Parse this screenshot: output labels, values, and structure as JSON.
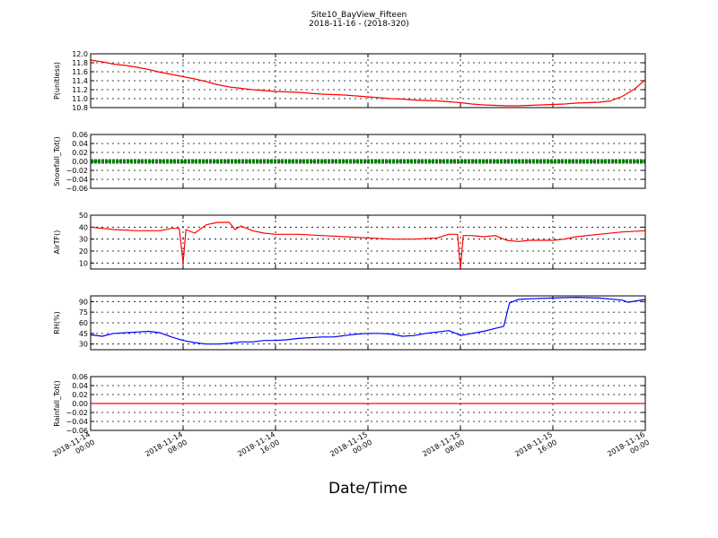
{
  "chart_data": {
    "type": "line",
    "title": "Site10_BayView_Fifteen",
    "subtitle": "2018-11-16 - (2018-320)",
    "xlabel": "Date/Time",
    "x_range": [
      "2018-11-14 00:00",
      "2018-11-16 00:00"
    ],
    "x_ticks": [
      {
        "line1": "2018-11-14",
        "line2": "00:00"
      },
      {
        "line1": "2018-11-14",
        "line2": "08:00"
      },
      {
        "line1": "2018-11-14",
        "line2": "16:00"
      },
      {
        "line1": "2018-11-15",
        "line2": "00:00"
      },
      {
        "line1": "2018-11-15",
        "line2": "08:00"
      },
      {
        "line1": "2018-11-15",
        "line2": "16:00"
      },
      {
        "line1": "2018-11-16",
        "line2": "00:00"
      }
    ],
    "grid": true,
    "panels": [
      {
        "ylabel": "P(unitless)",
        "ylim": [
          10.8,
          12.0
        ],
        "yticks": [
          10.8,
          11.0,
          11.2,
          11.4,
          11.6,
          11.8,
          12.0
        ],
        "ytick_labels": [
          "10.8",
          "11.0",
          "11.2",
          "11.4",
          "11.6",
          "11.8",
          "12.0"
        ],
        "color": "#ff0000",
        "style": "line",
        "points": [
          [
            "2018-11-14 00:00",
            11.86
          ],
          [
            "2018-11-14 01:00",
            11.82
          ],
          [
            "2018-11-14 02:00",
            11.77
          ],
          [
            "2018-11-14 03:00",
            11.74
          ],
          [
            "2018-11-14 04:00",
            11.7
          ],
          [
            "2018-11-14 05:00",
            11.65
          ],
          [
            "2018-11-14 06:00",
            11.59
          ],
          [
            "2018-11-14 07:00",
            11.54
          ],
          [
            "2018-11-14 08:00",
            11.49
          ],
          [
            "2018-11-14 09:00",
            11.44
          ],
          [
            "2018-11-14 10:00",
            11.38
          ],
          [
            "2018-11-14 11:00",
            11.31
          ],
          [
            "2018-11-14 12:00",
            11.26
          ],
          [
            "2018-11-14 13:00",
            11.23
          ],
          [
            "2018-11-14 14:00",
            11.2
          ],
          [
            "2018-11-14 15:00",
            11.18
          ],
          [
            "2018-11-14 16:00",
            11.16
          ],
          [
            "2018-11-14 17:00",
            11.15
          ],
          [
            "2018-11-14 18:00",
            11.14
          ],
          [
            "2018-11-14 19:00",
            11.12
          ],
          [
            "2018-11-14 20:00",
            11.1
          ],
          [
            "2018-11-14 21:00",
            11.09
          ],
          [
            "2018-11-14 22:00",
            11.08
          ],
          [
            "2018-11-14 23:00",
            11.06
          ],
          [
            "2018-11-15 00:00",
            11.04
          ],
          [
            "2018-11-15 01:00",
            11.02
          ],
          [
            "2018-11-15 02:00",
            11.0
          ],
          [
            "2018-11-15 03:00",
            10.99
          ],
          [
            "2018-11-15 04:00",
            10.97
          ],
          [
            "2018-11-15 05:00",
            10.96
          ],
          [
            "2018-11-15 06:00",
            10.95
          ],
          [
            "2018-11-15 07:00",
            10.93
          ],
          [
            "2018-11-15 08:00",
            10.91
          ],
          [
            "2018-11-15 09:00",
            10.88
          ],
          [
            "2018-11-15 10:00",
            10.86
          ],
          [
            "2018-11-15 11:00",
            10.85
          ],
          [
            "2018-11-15 12:00",
            10.84
          ],
          [
            "2018-11-15 13:00",
            10.84
          ],
          [
            "2018-11-15 14:00",
            10.85
          ],
          [
            "2018-11-15 15:00",
            10.86
          ],
          [
            "2018-11-15 16:00",
            10.87
          ],
          [
            "2018-11-15 17:00",
            10.88
          ],
          [
            "2018-11-15 18:00",
            10.9
          ],
          [
            "2018-11-15 19:00",
            10.91
          ],
          [
            "2018-11-15 20:00",
            10.92
          ],
          [
            "2018-11-15 21:00",
            10.95
          ],
          [
            "2018-11-15 22:00",
            11.05
          ],
          [
            "2018-11-15 23:00",
            11.2
          ],
          [
            "2018-11-16 00:00",
            11.42
          ]
        ]
      },
      {
        "ylabel": "Snowfall_Tot()",
        "ylim": [
          -0.06,
          0.06
        ],
        "yticks": [
          -0.06,
          -0.04,
          -0.02,
          0.0,
          0.02,
          0.04,
          0.06
        ],
        "ytick_labels": [
          "−0.06",
          "−0.04",
          "−0.02",
          "0.00",
          "0.02",
          "0.04",
          "0.06"
        ],
        "color": "#007f00",
        "style": "markers",
        "points": [
          [
            "2018-11-14 00:00",
            0.0
          ],
          [
            "2018-11-16 00:00",
            0.0
          ]
        ]
      },
      {
        "ylabel": "AirTF()",
        "ylim": [
          5,
          50
        ],
        "yticks": [
          10,
          20,
          30,
          40,
          50
        ],
        "ytick_labels": [
          "10",
          "20",
          "30",
          "40",
          "50"
        ],
        "color": "#ff0000",
        "style": "line",
        "points": [
          [
            "2018-11-14 00:00",
            40
          ],
          [
            "2018-11-14 02:00",
            38
          ],
          [
            "2018-11-14 04:00",
            37
          ],
          [
            "2018-11-14 06:00",
            37
          ],
          [
            "2018-11-14 07:00",
            39
          ],
          [
            "2018-11-14 07:40",
            39
          ],
          [
            "2018-11-14 08:00",
            10
          ],
          [
            "2018-11-14 08:15",
            38
          ],
          [
            "2018-11-14 09:00",
            35
          ],
          [
            "2018-11-14 10:00",
            42
          ],
          [
            "2018-11-14 11:00",
            44
          ],
          [
            "2018-11-14 12:00",
            44
          ],
          [
            "2018-11-14 12:30",
            38
          ],
          [
            "2018-11-14 13:00",
            41
          ],
          [
            "2018-11-14 14:00",
            37
          ],
          [
            "2018-11-14 15:00",
            35
          ],
          [
            "2018-11-14 16:00",
            34
          ],
          [
            "2018-11-14 17:00",
            34
          ],
          [
            "2018-11-14 18:00",
            34
          ],
          [
            "2018-11-14 20:00",
            33
          ],
          [
            "2018-11-14 22:00",
            32
          ],
          [
            "2018-11-15 00:00",
            31
          ],
          [
            "2018-11-15 02:00",
            30
          ],
          [
            "2018-11-15 04:00",
            30
          ],
          [
            "2018-11-15 06:00",
            31
          ],
          [
            "2018-11-15 07:00",
            34
          ],
          [
            "2018-11-15 07:45",
            34
          ],
          [
            "2018-11-15 08:00",
            5
          ],
          [
            "2018-11-15 08:15",
            33
          ],
          [
            "2018-11-15 09:00",
            33
          ],
          [
            "2018-11-15 10:00",
            32
          ],
          [
            "2018-11-15 11:00",
            33
          ],
          [
            "2018-11-15 12:00",
            29
          ],
          [
            "2018-11-15 13:00",
            28
          ],
          [
            "2018-11-15 14:00",
            29
          ],
          [
            "2018-11-15 16:00",
            29
          ],
          [
            "2018-11-15 17:00",
            30
          ],
          [
            "2018-11-15 18:00",
            32
          ],
          [
            "2018-11-15 20:00",
            34
          ],
          [
            "2018-11-15 22:00",
            36
          ],
          [
            "2018-11-16 00:00",
            37
          ]
        ]
      },
      {
        "ylabel": "RH(%)",
        "ylim": [
          22,
          98
        ],
        "yticks": [
          30,
          45,
          60,
          75,
          90
        ],
        "ytick_labels": [
          "30",
          "45",
          "60",
          "75",
          "90"
        ],
        "color": "#0000ff",
        "style": "line",
        "points": [
          [
            "2018-11-14 00:00",
            43
          ],
          [
            "2018-11-14 01:00",
            41
          ],
          [
            "2018-11-14 02:00",
            45
          ],
          [
            "2018-11-14 03:00",
            46
          ],
          [
            "2018-11-14 04:00",
            47
          ],
          [
            "2018-11-14 05:00",
            48
          ],
          [
            "2018-11-14 06:00",
            46
          ],
          [
            "2018-11-14 07:00",
            40
          ],
          [
            "2018-11-14 08:00",
            35
          ],
          [
            "2018-11-14 09:00",
            32
          ],
          [
            "2018-11-14 10:00",
            30
          ],
          [
            "2018-11-14 11:00",
            30
          ],
          [
            "2018-11-14 12:00",
            31
          ],
          [
            "2018-11-14 13:00",
            33
          ],
          [
            "2018-11-14 14:00",
            33
          ],
          [
            "2018-11-14 15:00",
            35
          ],
          [
            "2018-11-14 16:00",
            35
          ],
          [
            "2018-11-14 17:00",
            36
          ],
          [
            "2018-11-14 18:00",
            38
          ],
          [
            "2018-11-14 19:00",
            39
          ],
          [
            "2018-11-14 20:00",
            40
          ],
          [
            "2018-11-14 21:00",
            40
          ],
          [
            "2018-11-14 22:00",
            42
          ],
          [
            "2018-11-14 23:00",
            44
          ],
          [
            "2018-11-15 00:00",
            45
          ],
          [
            "2018-11-15 01:00",
            45
          ],
          [
            "2018-11-15 02:00",
            44
          ],
          [
            "2018-11-15 03:00",
            41
          ],
          [
            "2018-11-15 04:00",
            42
          ],
          [
            "2018-11-15 05:00",
            45
          ],
          [
            "2018-11-15 06:00",
            47
          ],
          [
            "2018-11-15 07:00",
            49
          ],
          [
            "2018-11-15 07:45",
            44
          ],
          [
            "2018-11-15 08:00",
            42
          ],
          [
            "2018-11-15 09:00",
            45
          ],
          [
            "2018-11-15 10:00",
            48
          ],
          [
            "2018-11-15 11:00",
            52
          ],
          [
            "2018-11-15 11:45",
            55
          ],
          [
            "2018-11-15 12:15",
            88
          ],
          [
            "2018-11-15 13:00",
            93
          ],
          [
            "2018-11-15 14:00",
            94
          ],
          [
            "2018-11-15 16:00",
            95
          ],
          [
            "2018-11-15 18:00",
            96
          ],
          [
            "2018-11-15 20:00",
            95
          ],
          [
            "2018-11-15 22:00",
            92
          ],
          [
            "2018-11-15 22:30",
            89
          ],
          [
            "2018-11-16 00:00",
            93
          ]
        ]
      },
      {
        "ylabel": "Rainfall_Tot()",
        "ylim": [
          -0.06,
          0.06
        ],
        "yticks": [
          -0.06,
          -0.04,
          -0.02,
          0.0,
          0.02,
          0.04,
          0.06
        ],
        "ytick_labels": [
          "−0.06",
          "−0.04",
          "−0.02",
          "0.00",
          "0.02",
          "0.04",
          "0.06"
        ],
        "color": "#ff0000",
        "style": "line",
        "points": [
          [
            "2018-11-14 00:00",
            0.0
          ],
          [
            "2018-11-16 00:00",
            0.0
          ]
        ]
      }
    ]
  }
}
